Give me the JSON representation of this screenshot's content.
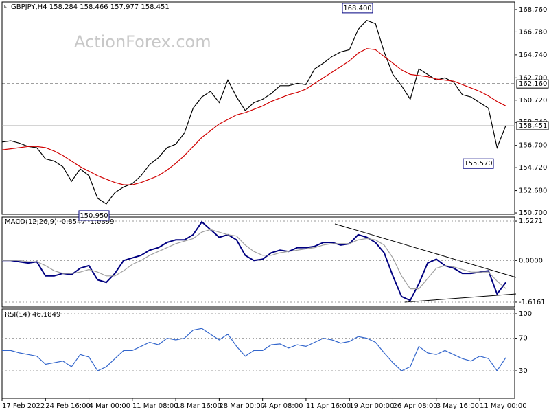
{
  "chart_data": [
    {
      "type": "line",
      "title": "GBPJPY,H4  158.284 158.466 157.977 158.451",
      "watermark": "ActionForex.com",
      "ylim": [
        150.58,
        169.43
      ],
      "yticks": [
        {
          "value": 168.76,
          "label": "168.760"
        },
        {
          "value": 166.78,
          "label": "166.780"
        },
        {
          "value": 164.74,
          "label": "164.740"
        },
        {
          "value": 162.7,
          "label": "162.700"
        },
        {
          "value": 160.72,
          "label": "160.720"
        },
        {
          "value": 158.74,
          "label": "158.740"
        },
        {
          "value": 156.7,
          "label": "156.700"
        },
        {
          "value": 154.72,
          "label": "154.720"
        },
        {
          "value": 152.68,
          "label": "152.680"
        },
        {
          "value": 150.7,
          "label": "150.700"
        }
      ],
      "grid": false,
      "series": [
        {
          "name": "GBPJPY",
          "color": "#000000",
          "values": [
            157.0,
            157.1,
            156.9,
            156.6,
            156.5,
            155.5,
            155.3,
            154.8,
            153.5,
            154.6,
            154.0,
            152.0,
            151.5,
            152.5,
            153.0,
            153.3,
            154.0,
            155.0,
            155.6,
            156.5,
            156.8,
            157.8,
            160.0,
            161.0,
            161.5,
            160.5,
            162.5,
            161.0,
            159.8,
            160.5,
            160.8,
            161.3,
            162.0,
            162.0,
            162.2,
            162.1,
            163.5,
            164.0,
            164.6,
            165.0,
            165.2,
            167.0,
            167.8,
            167.5,
            165.0,
            163.0,
            162.0,
            160.8,
            163.5,
            163.0,
            162.5,
            162.7,
            162.3,
            161.2,
            161.0,
            160.5,
            160.0,
            156.5,
            158.451
          ]
        },
        {
          "name": "MA",
          "color": "#d00000",
          "values": [
            156.3,
            156.4,
            156.5,
            156.6,
            156.6,
            156.5,
            156.2,
            155.8,
            155.3,
            154.8,
            154.4,
            154.0,
            153.7,
            153.4,
            153.2,
            153.2,
            153.4,
            153.7,
            154.0,
            154.5,
            155.1,
            155.8,
            156.6,
            157.4,
            158.0,
            158.6,
            159.0,
            159.4,
            159.6,
            159.9,
            160.2,
            160.6,
            160.9,
            161.2,
            161.4,
            161.7,
            162.2,
            162.7,
            163.2,
            163.7,
            164.2,
            164.9,
            165.3,
            165.2,
            164.6,
            164.0,
            163.4,
            163.0,
            162.9,
            162.8,
            162.6,
            162.5,
            162.4,
            162.1,
            161.8,
            161.5,
            161.1,
            160.6,
            160.2
          ]
        }
      ],
      "annotations": [
        {
          "value": 168.4,
          "label": "168.400"
        },
        {
          "value": 150.95,
          "label": "150.950"
        },
        {
          "value": 155.57,
          "label": "155.570"
        }
      ],
      "levels": [
        {
          "value": 162.16,
          "label": "162.160"
        }
      ],
      "current": {
        "value": 158.451,
        "label": "158.451"
      }
    },
    {
      "type": "line",
      "title": "MACD(12,26,9) -0.8547 -1.0899",
      "ylim": [
        -1.804,
        1.688
      ],
      "yticks": [
        1.5271,
        {
          "value": 0,
          "label": "0.0000"
        },
        -1.6161
      ],
      "grid": true,
      "series": [
        {
          "name": "MACD",
          "color": "#000080",
          "values": [
            0.0,
            0.0,
            -0.05,
            -0.1,
            -0.05,
            -0.6,
            -0.6,
            -0.5,
            -0.55,
            -0.3,
            -0.2,
            -0.75,
            -0.85,
            -0.5,
            0.0,
            0.1,
            0.2,
            0.4,
            0.5,
            0.7,
            0.8,
            0.8,
            1.0,
            1.5,
            1.2,
            0.9,
            1.0,
            0.8,
            0.2,
            0.0,
            0.05,
            0.3,
            0.4,
            0.35,
            0.5,
            0.5,
            0.55,
            0.7,
            0.7,
            0.6,
            0.65,
            1.0,
            0.9,
            0.7,
            0.3,
            -0.6,
            -1.4,
            -1.55,
            -0.9,
            -0.1,
            0.05,
            -0.2,
            -0.3,
            -0.5,
            -0.5,
            -0.45,
            -0.4,
            -1.3,
            -0.8547
          ]
        },
        {
          "name": "Signal",
          "color": "#a0a0a0",
          "values": [
            0.0,
            0.0,
            0.0,
            -0.05,
            -0.05,
            -0.2,
            -0.4,
            -0.5,
            -0.5,
            -0.45,
            -0.35,
            -0.45,
            -0.6,
            -0.6,
            -0.4,
            -0.15,
            0.0,
            0.2,
            0.35,
            0.5,
            0.65,
            0.75,
            0.85,
            1.1,
            1.2,
            1.1,
            1.0,
            0.95,
            0.6,
            0.35,
            0.2,
            0.2,
            0.3,
            0.35,
            0.4,
            0.45,
            0.5,
            0.6,
            0.65,
            0.65,
            0.65,
            0.8,
            0.85,
            0.8,
            0.6,
            0.1,
            -0.6,
            -1.1,
            -1.1,
            -0.7,
            -0.3,
            -0.2,
            -0.25,
            -0.35,
            -0.45,
            -0.45,
            -0.45,
            -0.8,
            -1.0899
          ]
        }
      ]
    },
    {
      "type": "line",
      "title": "RSI(14) 46.1849",
      "ylim": [
        -3.7,
        105.9
      ],
      "yticks": [
        100,
        70,
        30
      ],
      "grid": true,
      "categories": [
        "17 Feb 2022",
        null,
        null,
        null,
        null,
        "24 Feb 16:00",
        null,
        null,
        null,
        null,
        "4 Mar 00:00",
        null,
        null,
        null,
        null,
        "11 Mar 08:00",
        null,
        null,
        null,
        null,
        "18 Mar 16:00",
        null,
        null,
        null,
        null,
        "28 Mar 00:00",
        null,
        null,
        null,
        null,
        "4 Apr 08:00",
        null,
        null,
        null,
        null,
        "11 Apr 16:00",
        null,
        null,
        null,
        null,
        "19 Apr 00:00",
        null,
        null,
        null,
        null,
        "26 Apr 08:00",
        null,
        null,
        null,
        null,
        "3 May 16:00",
        null,
        null,
        null,
        null,
        "11 May 00:00",
        null,
        null,
        null
      ],
      "series": [
        {
          "name": "RSI",
          "color": "#3366cc",
          "values": [
            55,
            55,
            52,
            50,
            48,
            38,
            40,
            42,
            35,
            50,
            47,
            30,
            35,
            45,
            55,
            55,
            60,
            65,
            62,
            70,
            68,
            70,
            80,
            82,
            75,
            68,
            75,
            60,
            48,
            55,
            55,
            62,
            63,
            58,
            62,
            60,
            65,
            70,
            68,
            64,
            66,
            72,
            70,
            65,
            52,
            40,
            30,
            35,
            60,
            52,
            50,
            55,
            50,
            45,
            42,
            48,
            45,
            30,
            46.1849
          ]
        }
      ]
    }
  ]
}
